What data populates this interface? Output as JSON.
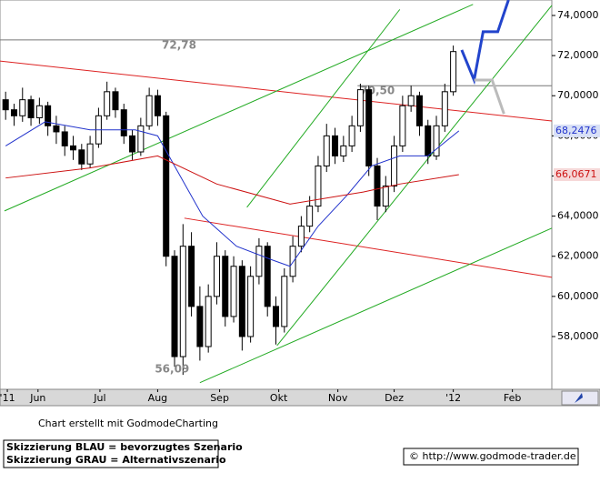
{
  "chart_data": {
    "type": "candlestick",
    "x": [
      2,
      5,
      8,
      11,
      14,
      17,
      20,
      23,
      26,
      29,
      32,
      35,
      38,
      41,
      44,
      47,
      50,
      53,
      56,
      59,
      62,
      65,
      68,
      71,
      74,
      77,
      80,
      83,
      86,
      89,
      92,
      95,
      98,
      101,
      104,
      107,
      110,
      113,
      116,
      119,
      122,
      125,
      128,
      131,
      134,
      137,
      140,
      143,
      146,
      149,
      152,
      155,
      158,
      161
    ],
    "open": [
      69.8,
      69.3,
      69.0,
      69.8,
      68.9,
      69.5,
      68.5,
      68.2,
      67.5,
      67.3,
      66.6,
      67.6,
      69.0,
      70.2,
      69.3,
      68.0,
      67.2,
      68.5,
      70.0,
      69.0,
      62.0,
      57.0,
      62.5,
      59.5,
      57.5,
      60.0,
      62.0,
      59.0,
      61.5,
      58.0,
      61.0,
      62.5,
      59.5,
      58.5,
      61.0,
      62.5,
      63.5,
      64.5,
      66.5,
      68.0,
      67.0,
      67.5,
      68.5,
      70.3,
      66.5,
      64.5,
      65.5,
      67.5,
      69.5,
      70.0,
      68.5,
      67.0,
      68.5,
      70.2
    ],
    "high": [
      70.2,
      69.6,
      70.4,
      70.0,
      69.9,
      69.7,
      69.0,
      68.5,
      68.0,
      67.6,
      68.0,
      69.4,
      70.7,
      70.4,
      69.6,
      68.3,
      68.9,
      70.4,
      70.3,
      69.2,
      62.3,
      63.6,
      63.2,
      60.5,
      60.6,
      62.7,
      62.3,
      62.0,
      61.8,
      61.5,
      62.9,
      62.7,
      60.0,
      61.4,
      63.0,
      64.0,
      65.0,
      67.0,
      68.6,
      68.4,
      68.0,
      69.0,
      70.6,
      70.5,
      66.9,
      66.0,
      68.0,
      70.0,
      70.5,
      70.2,
      68.8,
      69.0,
      70.6,
      72.5
    ],
    "low": [
      68.8,
      68.5,
      68.7,
      68.5,
      68.6,
      68.0,
      67.6,
      67.0,
      66.8,
      66.3,
      66.4,
      67.4,
      68.8,
      68.9,
      67.6,
      66.8,
      67.0,
      68.3,
      68.5,
      61.5,
      56.5,
      56.09,
      59.0,
      56.8,
      57.2,
      59.6,
      58.5,
      58.7,
      57.3,
      57.7,
      60.6,
      59.0,
      57.6,
      58.2,
      60.7,
      62.2,
      63.2,
      64.2,
      66.2,
      66.6,
      66.7,
      67.2,
      68.2,
      66.0,
      63.8,
      64.2,
      65.2,
      67.2,
      69.2,
      68.0,
      66.6,
      66.8,
      68.2,
      70.0
    ],
    "close": [
      69.3,
      69.0,
      69.8,
      68.9,
      69.5,
      68.5,
      68.2,
      67.5,
      67.3,
      66.6,
      67.6,
      69.0,
      70.2,
      69.3,
      68.0,
      67.2,
      68.5,
      70.0,
      69.0,
      62.0,
      57.0,
      62.5,
      59.5,
      57.5,
      60.0,
      62.0,
      59.0,
      61.5,
      58.0,
      61.0,
      62.5,
      59.5,
      58.5,
      61.0,
      62.5,
      63.5,
      64.5,
      66.5,
      68.0,
      67.0,
      67.5,
      68.5,
      70.3,
      66.5,
      64.5,
      65.5,
      67.5,
      69.5,
      70.0,
      68.5,
      67.0,
      68.5,
      70.2,
      72.2
    ],
    "series": [
      {
        "color": "#2233cc",
        "x": [
          2,
          16,
          32,
          48,
          56,
          64,
          72,
          84,
          97,
          103,
          113,
          123,
          132,
          142,
          152,
          163
        ],
        "values": [
          67.5,
          68.7,
          68.3,
          68.3,
          68.0,
          66.0,
          64.0,
          62.5,
          61.8,
          61.5,
          63.5,
          65.0,
          66.5,
          67.0,
          67.0,
          68.2476
        ],
        "value_labels": [
          null,
          null,
          null,
          null,
          null,
          null,
          null,
          null,
          null,
          null,
          null,
          null,
          null,
          null,
          null,
          "68,2476"
        ]
      },
      {
        "color": "#cc1111",
        "x": [
          2,
          32,
          56,
          77,
          103,
          129,
          142,
          163
        ],
        "values": [
          65.9,
          66.4,
          67.0,
          65.6,
          64.6,
          65.2,
          65.6,
          66.0671
        ],
        "value_labels": [
          null,
          null,
          null,
          null,
          null,
          null,
          null,
          "66,0671"
        ]
      }
    ],
    "trendlines": [
      {
        "color": "#dd2222",
        "x": [
          0,
          196
        ],
        "values": [
          71.73,
          68.74
        ]
      },
      {
        "color": "#dd2222",
        "x": [
          65.5,
          196
        ],
        "values": [
          63.9,
          60.95
        ]
      },
      {
        "color": "#22aa22",
        "x": [
          1.6,
          168
        ],
        "values": [
          64.26,
          74.55
        ]
      },
      {
        "color": "#22aa22",
        "x": [
          87.7,
          142
        ],
        "values": [
          64.44,
          74.3
        ]
      },
      {
        "color": "#22aa22",
        "x": [
          98.4,
          196
        ],
        "values": [
          57.55,
          74.5
        ]
      },
      {
        "color": "#22aa22",
        "x": [
          71,
          196
        ],
        "values": [
          55.7,
          63.4
        ]
      }
    ],
    "scenarios": [
      {
        "color": "#2244cc",
        "x": [
          164,
          168.4,
          171.6,
          176.8,
          180.6
        ],
        "values": [
          72.28,
          70.78,
          73.19,
          73.19,
          74.77
        ]
      },
      {
        "color": "#bbbbbb",
        "x": [
          168.4,
          174.8,
          179
        ],
        "values": [
          70.78,
          70.78,
          69.1
        ]
      }
    ],
    "hlines": [
      {
        "value": 72.78,
        "label": "72,78",
        "from": 0
      },
      {
        "value": 70.5,
        "label": "70,50",
        "from": 127
      }
    ],
    "low_label": {
      "value": 56.09,
      "label": "56,09",
      "x": 55
    },
    "xlim": [
      0,
      196
    ],
    "ylim": [
      55.37,
      74.77
    ],
    "xticks": [
      {
        "value": 2.6,
        "label": "'11"
      },
      {
        "value": 13.5,
        "label": "Jun"
      },
      {
        "value": 35.5,
        "label": "Jul"
      },
      {
        "value": 56,
        "label": "Aug"
      },
      {
        "value": 78,
        "label": "Sep"
      },
      {
        "value": 99,
        "label": "Okt"
      },
      {
        "value": 120,
        "label": "Nov"
      },
      {
        "value": 140,
        "label": "Dez"
      },
      {
        "value": 161,
        "label": "'12"
      },
      {
        "value": 182,
        "label": "Feb"
      }
    ],
    "yticks": [
      {
        "value": 58,
        "label": "58,0000"
      },
      {
        "value": 60,
        "label": "60,0000"
      },
      {
        "value": 62,
        "label": "62,0000"
      },
      {
        "value": 64,
        "label": "64,0000"
      },
      {
        "value": 66,
        "label": "66,0000"
      },
      {
        "value": 68,
        "label": "68,0000"
      },
      {
        "value": 70,
        "label": "70,0000"
      },
      {
        "value": 72,
        "label": "72,0000"
      },
      {
        "value": 74,
        "label": "74,0000"
      }
    ],
    "credit": "Chart erstellt mit GodmodeCharting",
    "legend": [
      "Skizzierung BLAU = bevorzugtes Szenario",
      "Skizzierung GRAU = Alternativszenario"
    ],
    "source": "© http://www.godmode-trader.de"
  }
}
